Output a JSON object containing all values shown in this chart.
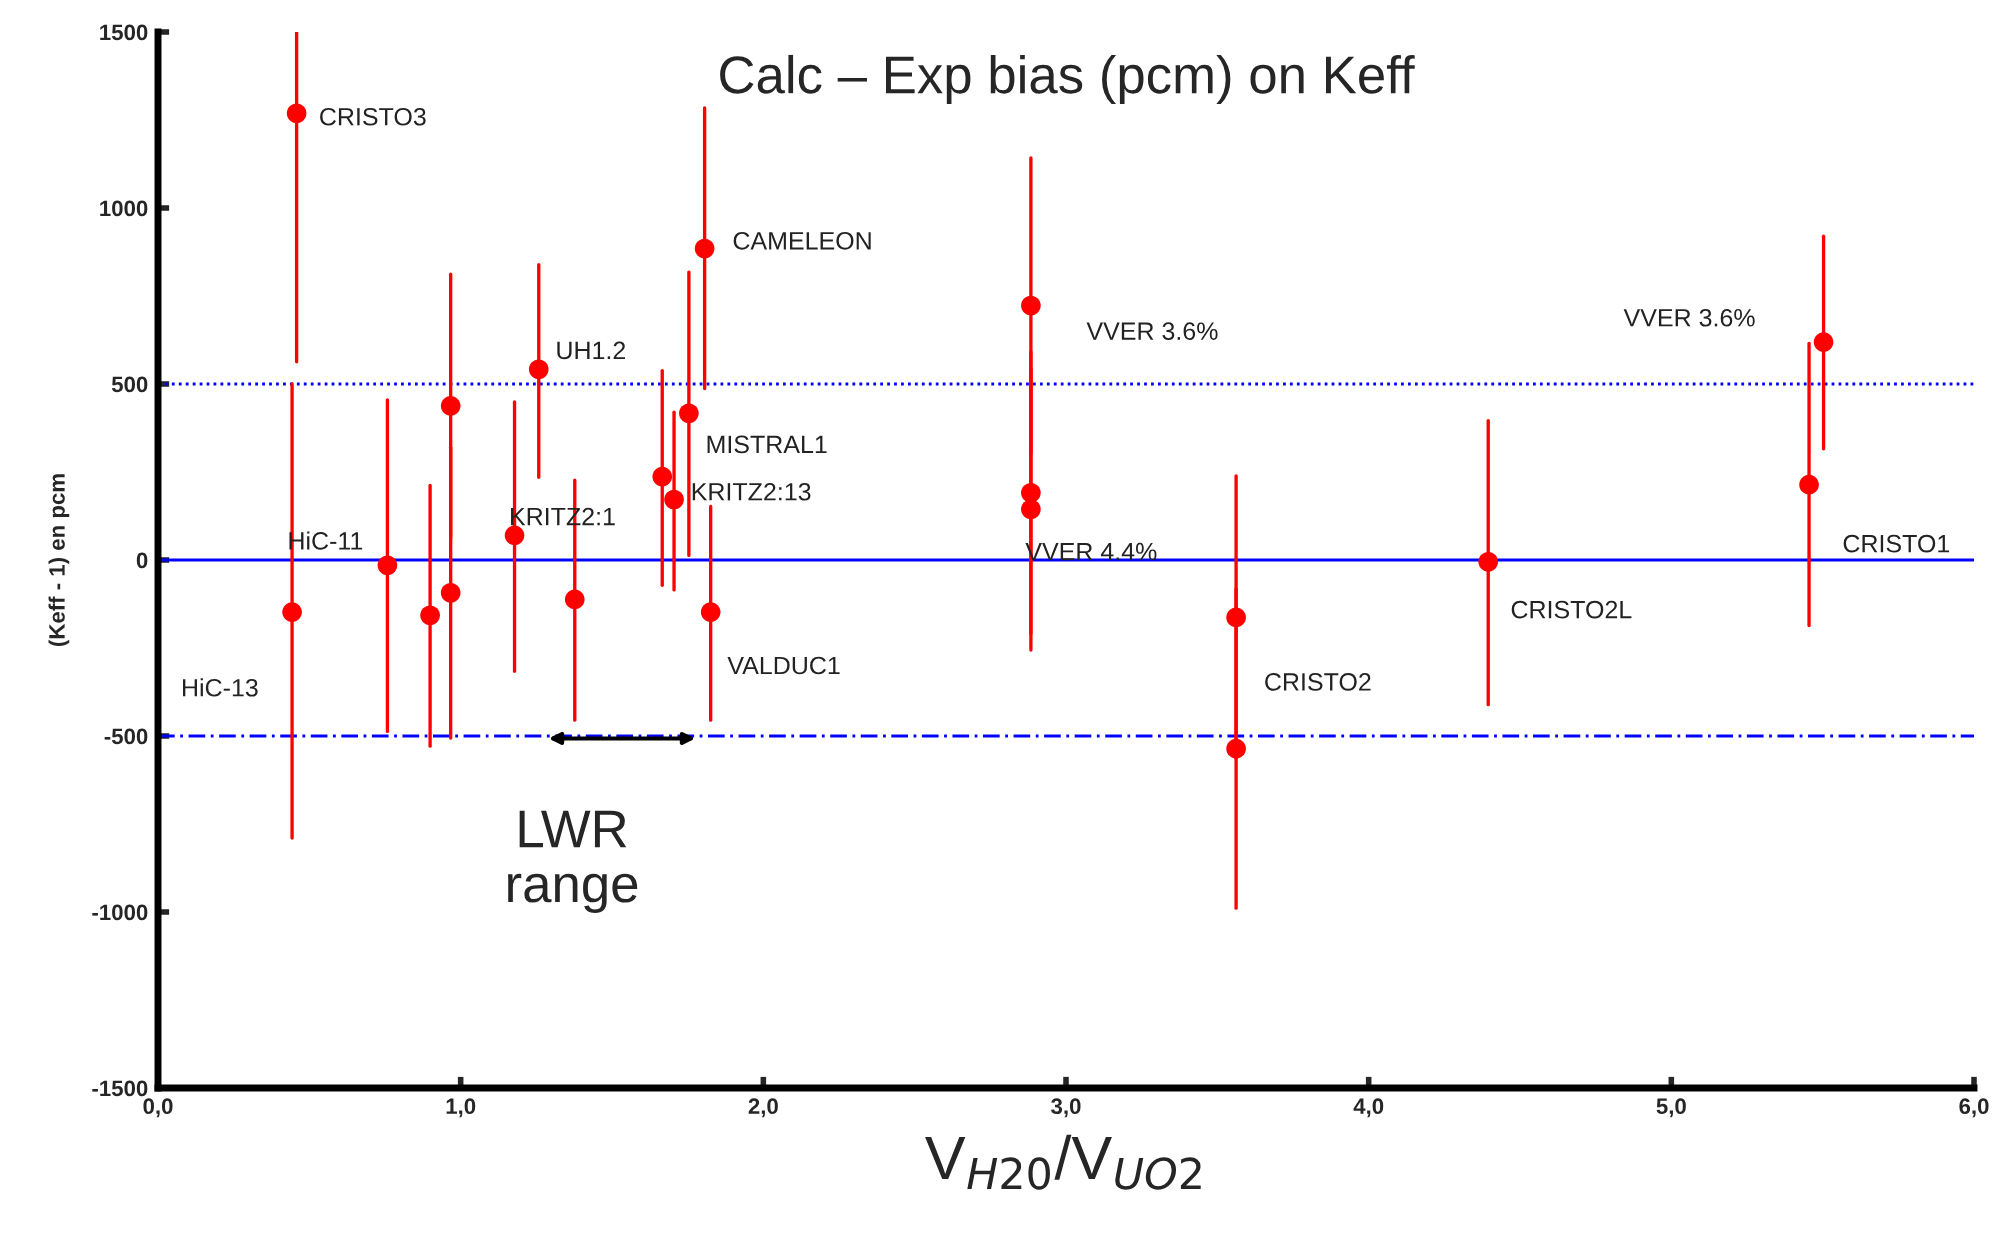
{
  "chart_data": {
    "type": "scatter",
    "title": "Calc – Exp bias (pcm) on Keff",
    "xlabel": "V$_{H20}$/V$_{UO2}$",
    "ylabel": "(Keff - 1) en pcm",
    "x": [
      0.458,
      0.443,
      0.758,
      0.899,
      0.967,
      0.967,
      1.178,
      1.258,
      1.377,
      1.666,
      1.705,
      1.754,
      1.806,
      1.826,
      2.884,
      2.884,
      2.884,
      3.562,
      3.562,
      4.395,
      5.455,
      5.503
    ],
    "series": [
      {
        "color": "#ff0000",
        "values": [
          1269,
          -148,
          -15,
          -157,
          438,
          -93,
          70,
          542,
          -112,
          237,
          172,
          417,
          885,
          -148,
          723,
          191,
          144,
          -163,
          -536,
          -5,
          214,
          619
        ],
        "errors": [
          [
            563,
            1500
          ],
          [
            -790,
            500
          ],
          [
            -487,
            455
          ],
          [
            -529,
            212
          ],
          [
            63,
            812
          ],
          [
            -506,
            320
          ],
          [
            -316,
            449
          ],
          [
            235,
            839
          ],
          [
            -455,
            227
          ],
          [
            -72,
            538
          ],
          [
            -85,
            420
          ],
          [
            13,
            818
          ],
          [
            487,
            1284
          ],
          [
            -455,
            152
          ],
          [
            303,
            1142
          ],
          [
            -209,
            591
          ],
          [
            -256,
            544
          ],
          [
            -563,
            239
          ],
          [
            -989,
            -83
          ],
          [
            -411,
            396
          ],
          [
            -186,
            615
          ],
          [
            316,
            920
          ]
        ]
      }
    ],
    "xlim": [
      0,
      6
    ],
    "xticks": [
      {
        "value": 0,
        "label": "0,0"
      },
      {
        "value": 1,
        "label": "1,0"
      },
      {
        "value": 2,
        "label": "2,0"
      },
      {
        "value": 3,
        "label": "3,0"
      },
      {
        "value": 4,
        "label": "4,0"
      },
      {
        "value": 5,
        "label": "5,0"
      },
      {
        "value": 6,
        "label": "6,0"
      }
    ],
    "ylim": [
      -1500,
      1500
    ],
    "yticks": [
      -1500,
      -1000,
      -500,
      0,
      500,
      1000,
      1500
    ],
    "marker": "circle",
    "grid": false,
    "legend": false,
    "ref_lines": [
      {
        "axis": "y",
        "value": 500,
        "color": "#0000ff",
        "line_style": "dotted"
      },
      {
        "axis": "y",
        "value": 0,
        "color": "#0000ff",
        "line_style": "solid"
      },
      {
        "axis": "y",
        "value": -500,
        "color": "#0000ff",
        "line_style": "dashed"
      }
    ],
    "annotations": [
      {
        "text": "CRISTO3",
        "x": 0.458,
        "y": 1269
      },
      {
        "text": "HiC-13",
        "x": 0.443,
        "y": -148
      },
      {
        "text": "HiC-11",
        "x": 0.758,
        "y": -15
      },
      {
        "text": "KRITZ2:1",
        "x": 1.178,
        "y": 70
      },
      {
        "text": "UH1.2",
        "x": 1.258,
        "y": 542
      },
      {
        "text": "KRITZ2:13",
        "x": 1.705,
        "y": 172
      },
      {
        "text": "MISTRAL1",
        "x": 1.754,
        "y": 417
      },
      {
        "text": "CAMELEON",
        "x": 1.806,
        "y": 885
      },
      {
        "text": "VALDUC1",
        "x": 1.826,
        "y": -148
      },
      {
        "text": "VVER 3.6%",
        "x": 2.884,
        "y": 723
      },
      {
        "text": "VVER 4.4%",
        "x": 2.884,
        "y": 144
      },
      {
        "text": "CRISTO2",
        "x": 3.562,
        "y": -163
      },
      {
        "text": "CRISTO2L",
        "x": 4.395,
        "y": -5
      },
      {
        "text": "CRISTO1",
        "x": 5.455,
        "y": 214
      },
      {
        "text": "VVER 3.6%",
        "x": 5.503,
        "y": 619
      },
      "LWR\nrange"
    ]
  }
}
